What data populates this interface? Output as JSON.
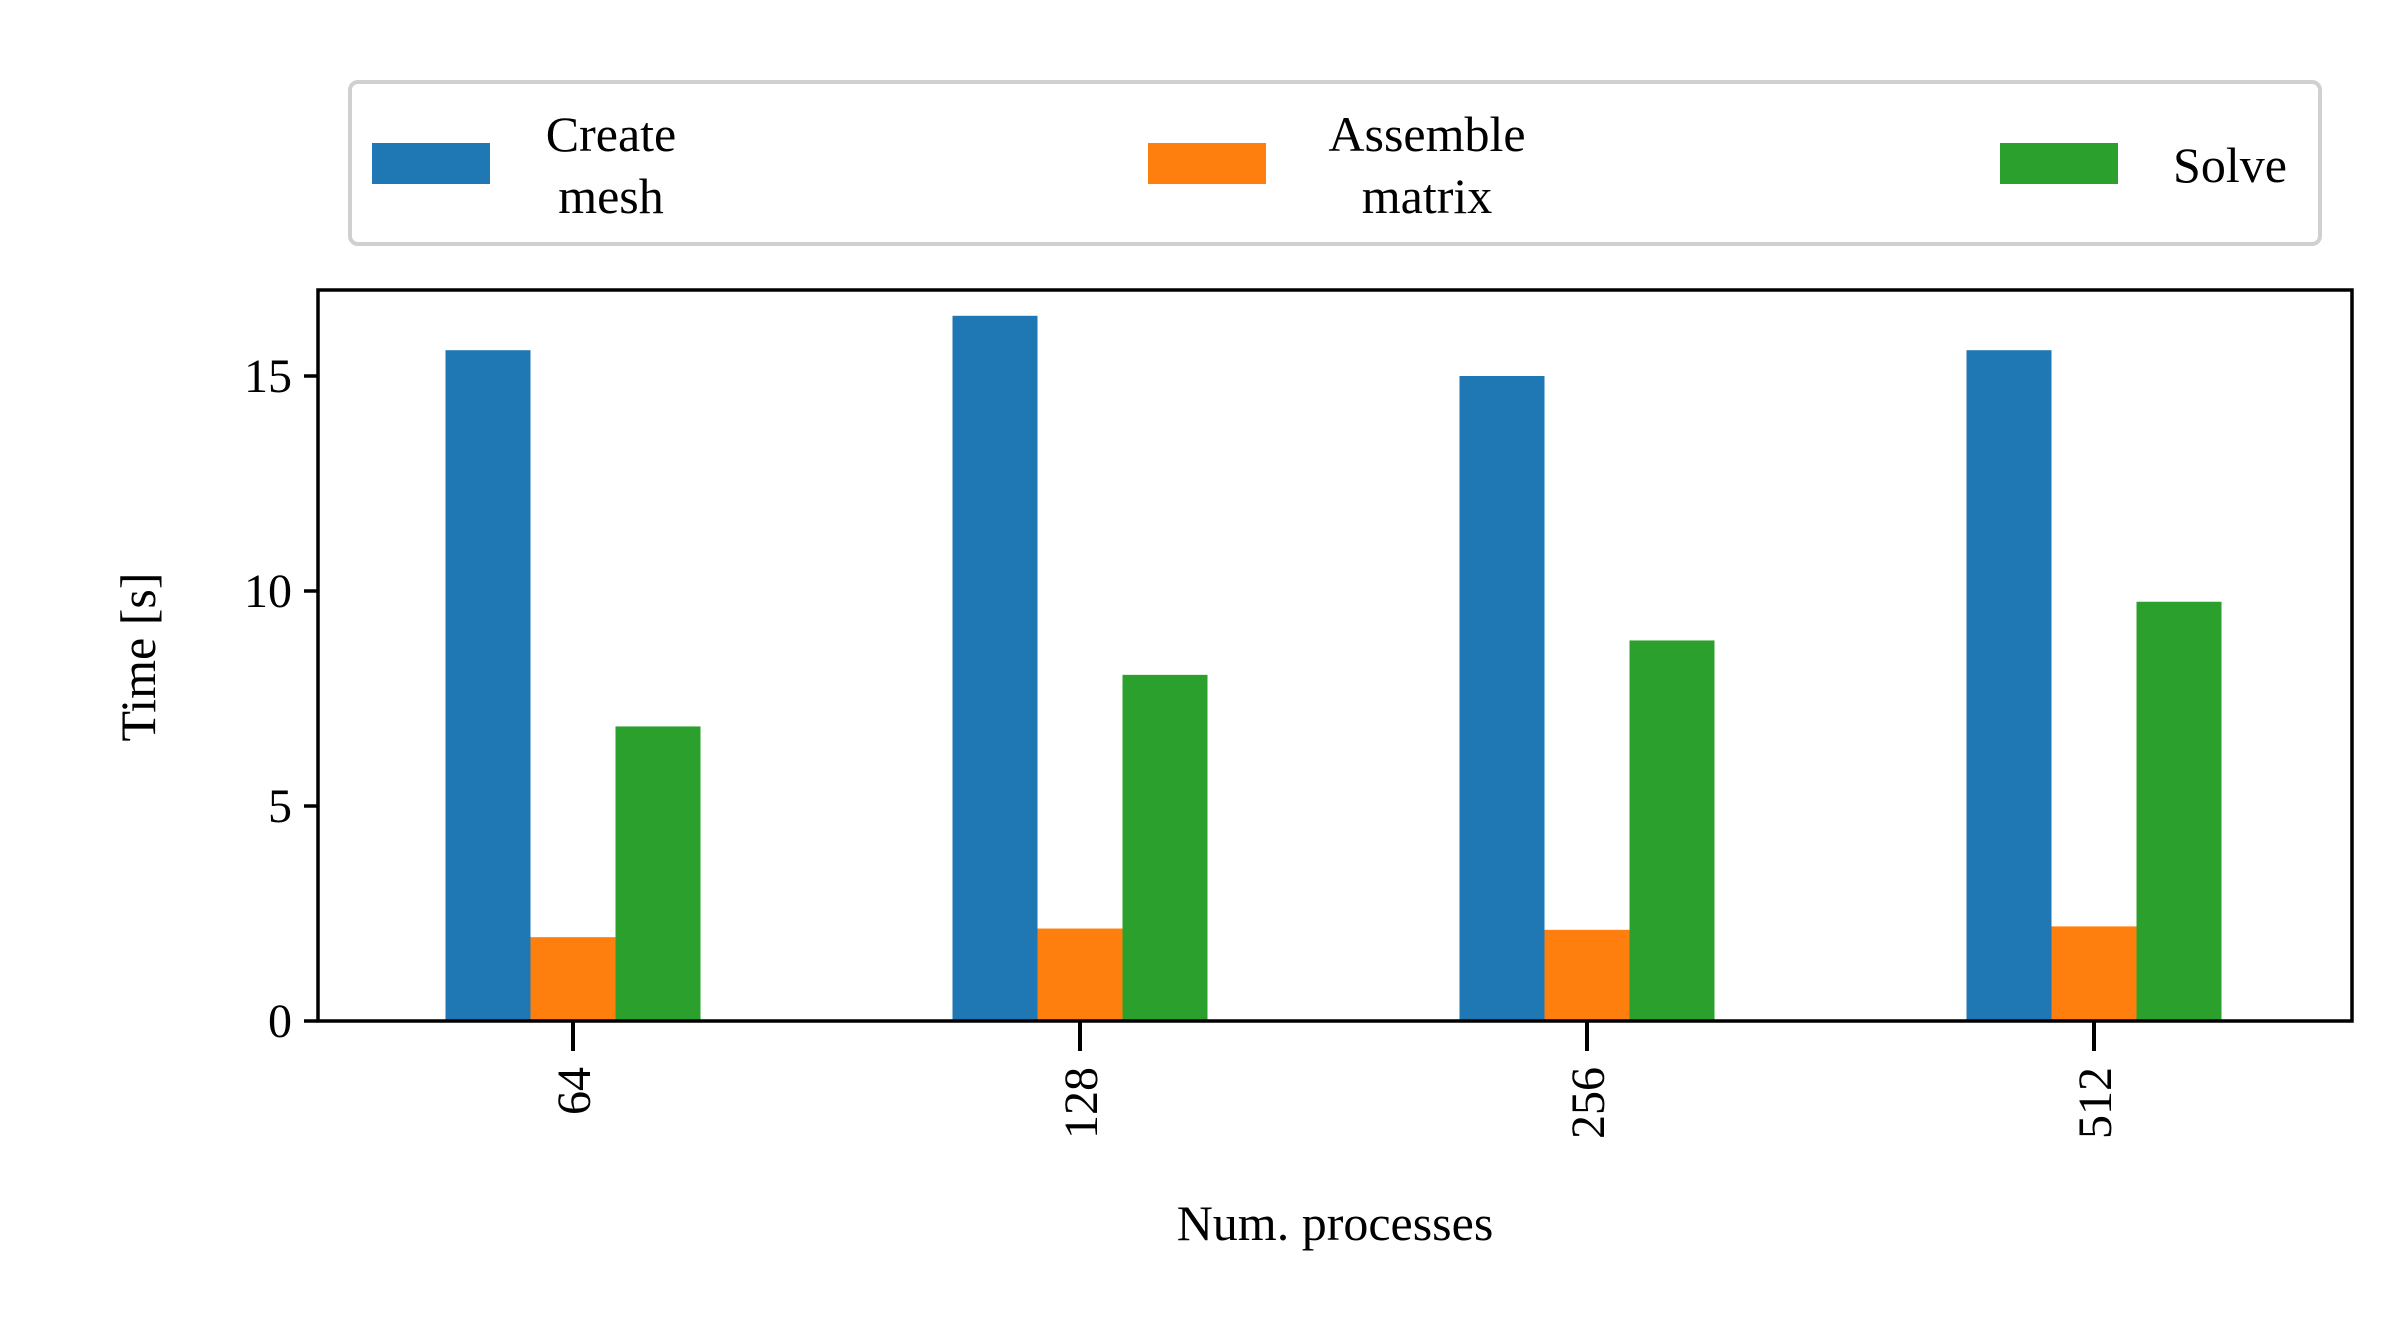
{
  "chart_data": {
    "type": "bar",
    "title": "",
    "xlabel": "Num. processes",
    "ylabel": "Time [s]",
    "categories": [
      "64",
      "128",
      "256",
      "512"
    ],
    "ylim": [
      0,
      17
    ],
    "yticks": [
      0,
      5,
      10,
      15
    ],
    "grid": false,
    "legend": "top, above the plot, horizontal",
    "series": [
      {
        "name": "Create\nmesh",
        "color": "#1f77b4",
        "values": [
          15.6,
          16.4,
          15.0,
          15.6
        ]
      },
      {
        "name": "Assemble\nmatrix",
        "color": "#ff7f0e",
        "values": [
          1.95,
          2.15,
          2.12,
          2.2
        ]
      },
      {
        "name": "Solve",
        "color": "#2ca02c",
        "values": [
          6.85,
          8.05,
          8.85,
          9.75
        ]
      }
    ]
  }
}
